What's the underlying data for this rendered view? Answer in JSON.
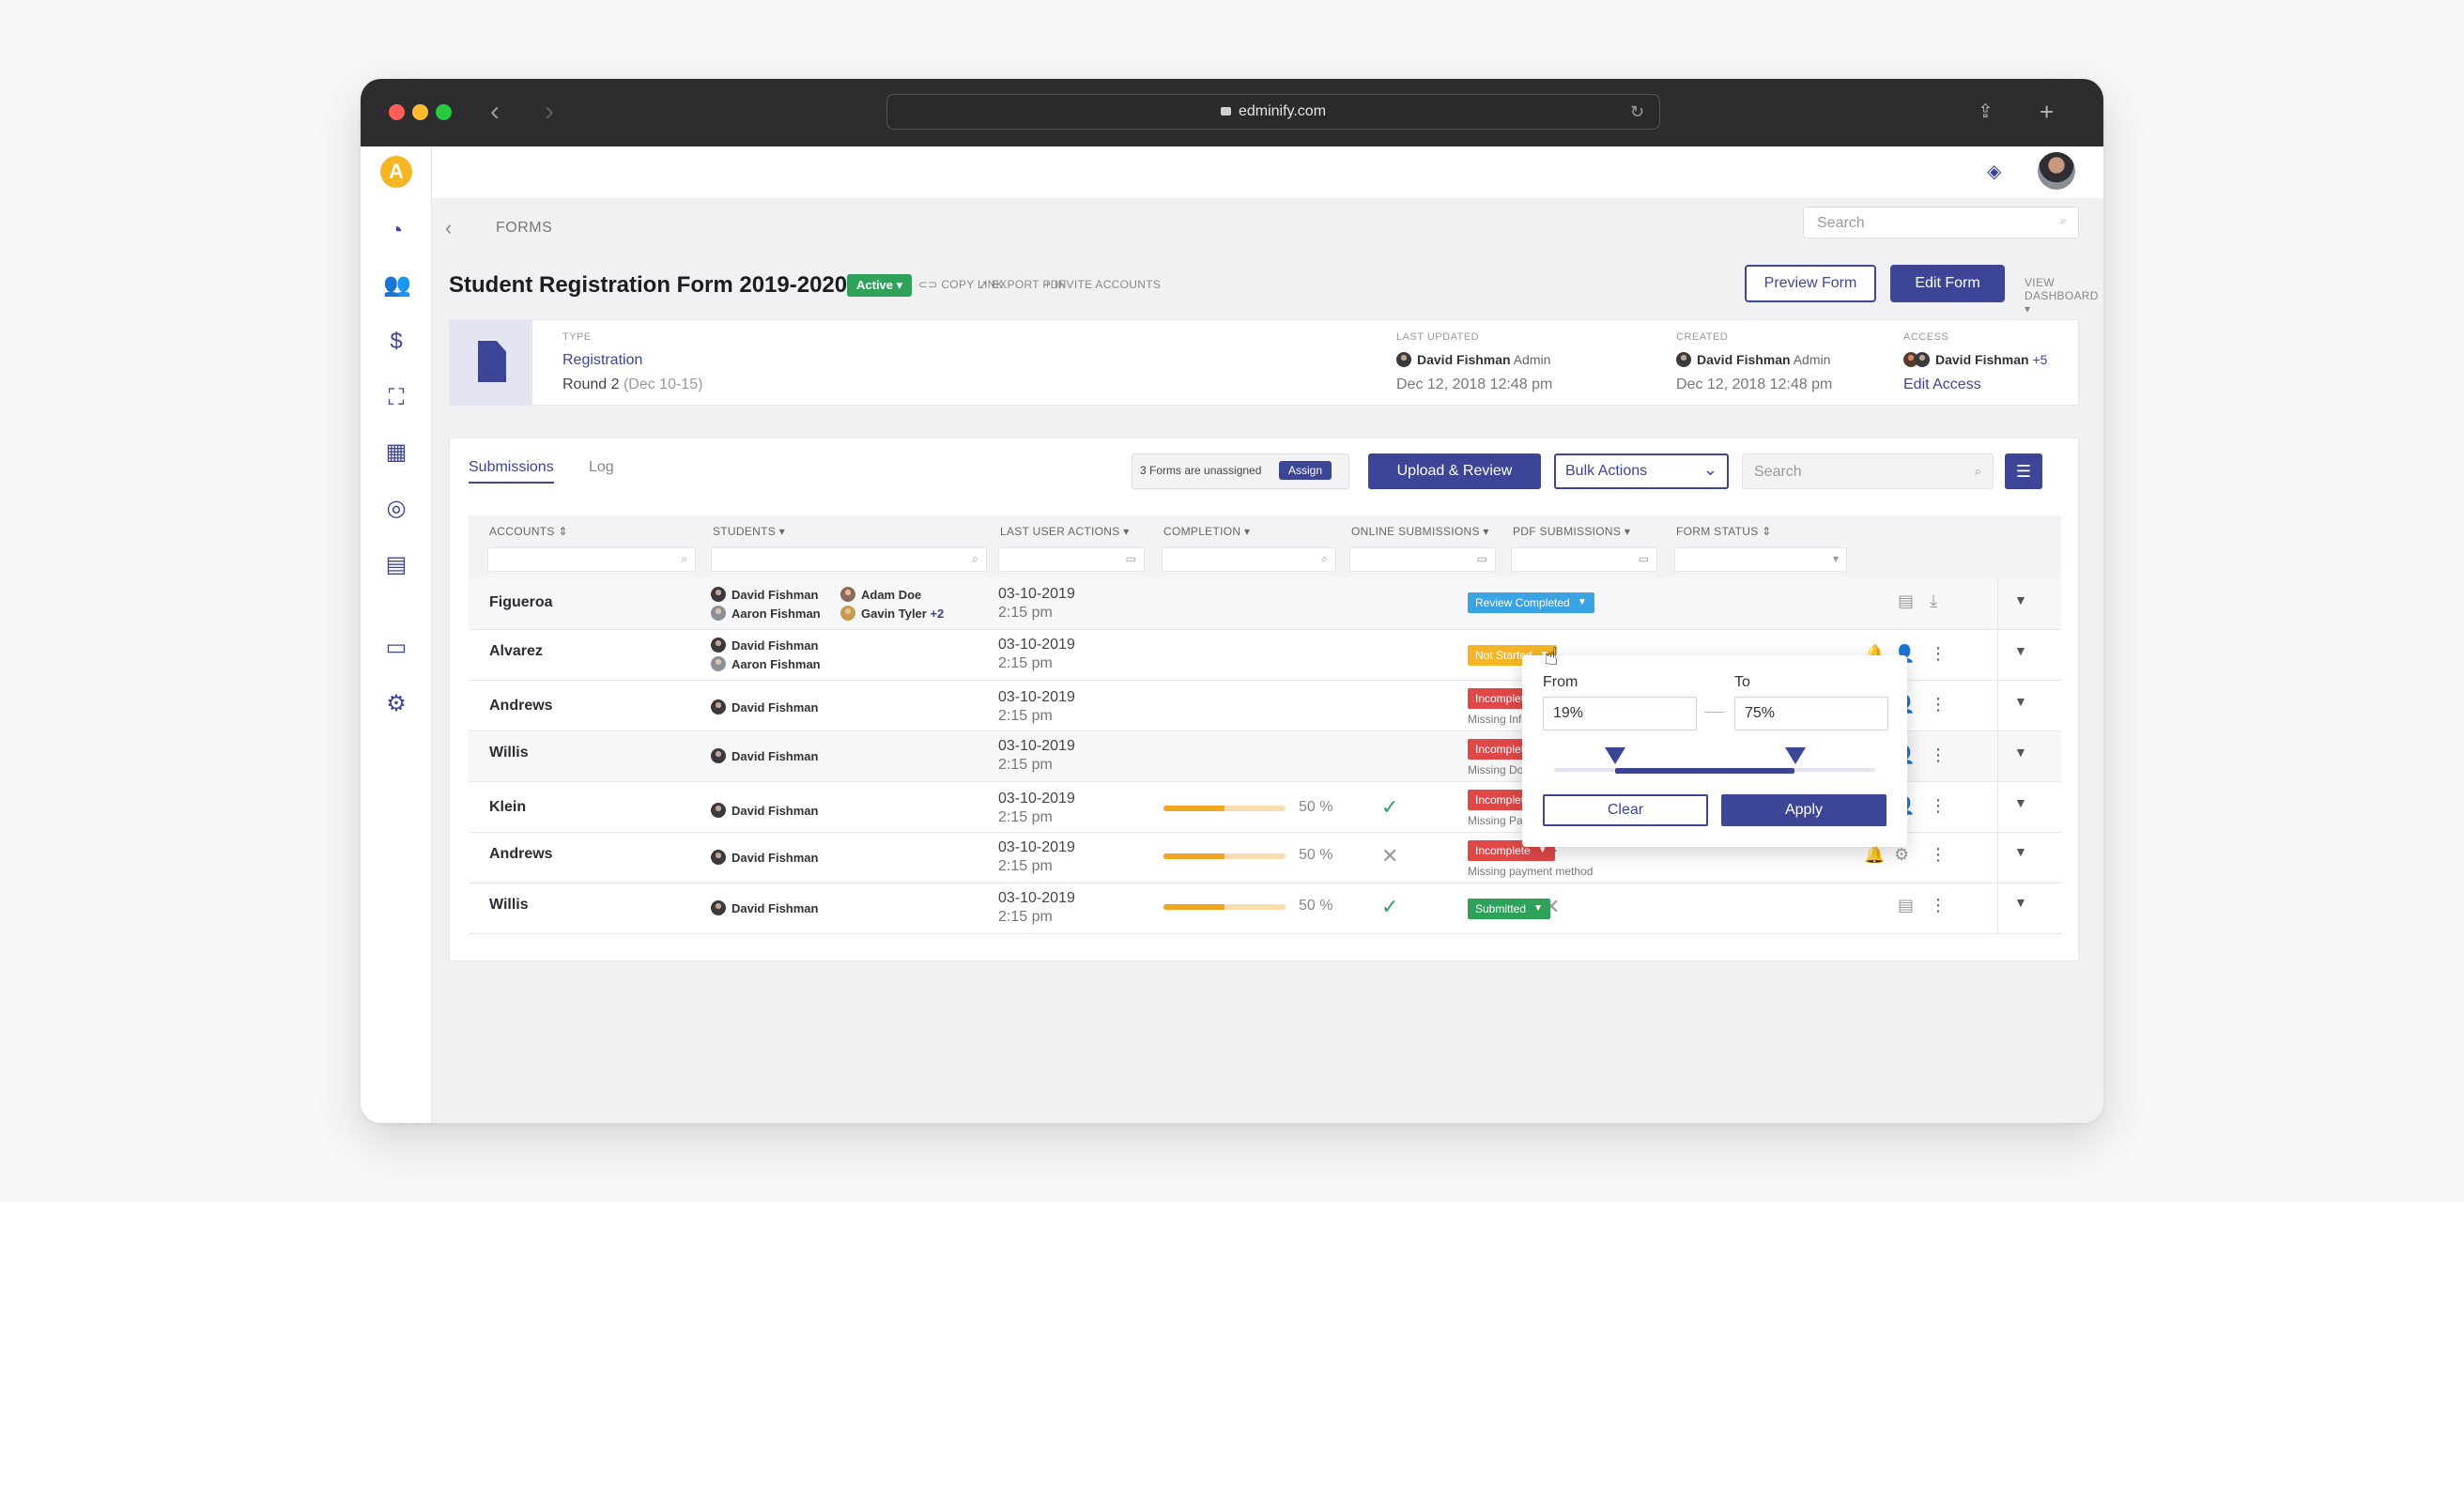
{
  "browser": {
    "url": "edminify.com"
  },
  "colors": {
    "brand": "#3d4596",
    "active": "#2fa15b",
    "review": "#3aa3e3",
    "notStarted": "#f5b524",
    "incomplete": "#e04848",
    "submitted": "#2fa15b"
  },
  "sidebar": {
    "logo": "A",
    "icons": [
      "speedometer-icon",
      "users-icon",
      "dollar-icon",
      "classroom-icon",
      "dashboard-icon",
      "support-icon",
      "forms-icon",
      "chat-icon",
      "gear-icon"
    ]
  },
  "header": {
    "crumb": "FORMS",
    "search_placeholder": "Search"
  },
  "form": {
    "title": "Student Registration Form 2019-2020",
    "status": "Active",
    "links": {
      "copy": "COPY LINK",
      "export": "EXPORT PDF",
      "invite": "INVITE ACCOUNTS"
    },
    "preview": "Preview Form",
    "edit": "Edit Form",
    "view_dashboard": "VIEW DASHBOARD"
  },
  "info": {
    "type_label": "TYPE",
    "type": "Registration",
    "round": "Round 2",
    "round_dates": "(Dec 10-15)",
    "updated_label": "LAST UPDATED",
    "updated_by": "David Fishman",
    "updated_role": "Admin",
    "updated_date": "Dec 12, 2018 12:48 pm",
    "created_label": "CREATED",
    "created_by": "David Fishman",
    "created_role": "Admin",
    "created_date": "Dec 12, 2018 12:48 pm",
    "access_label": "ACCESS",
    "access_user": "David Fishman",
    "access_more": "+5",
    "edit_access": "Edit Access"
  },
  "panel": {
    "tabs": [
      "Submissions",
      "Log"
    ],
    "unassigned": "3 Forms are unassigned",
    "assign": "Assign",
    "upload": "Upload & Review",
    "bulk": "Bulk Actions",
    "search_placeholder": "Search"
  },
  "columns": [
    "ACCOUNTS",
    "STUDENTS",
    "LAST USER ACTIONS",
    "COMPLETION",
    "ONLINE SUBMISSIONS",
    "PDF SUBMISSIONS",
    "FORM STATUS"
  ],
  "rows": [
    {
      "account": "Figueroa",
      "s1": "David Fishman",
      "s2": "Aaron Fishman",
      "s3": "Adam Doe",
      "s4": "Gavin Tyler",
      "more": "+2",
      "date": "03-10-2019",
      "time": "2:15 pm",
      "pdf": "✕",
      "status": "Review Completed",
      "note": ""
    },
    {
      "account": "Alvarez",
      "s1": "David Fishman",
      "s2": "Aaron Fishman",
      "date": "03-10-2019",
      "time": "2:15 pm",
      "pdf": "✓",
      "status": "Not Started",
      "note": ""
    },
    {
      "account": "Andrews",
      "s1": "David Fishman",
      "date": "03-10-2019",
      "time": "2:15 pm",
      "pdf": "✓",
      "status": "Incomplete",
      "note": "Missing Info"
    },
    {
      "account": "Willis",
      "s1": "David Fishman",
      "date": "03-10-2019",
      "time": "2:15 pm",
      "pdf": "✕",
      "status": "Incomplete",
      "note": "Missing Documents"
    },
    {
      "account": "Klein",
      "s1": "David Fishman",
      "date": "03-10-2019",
      "time": "2:15 pm",
      "completion": 0.5,
      "pct": "50 %",
      "online": "✓",
      "pdf": "✓",
      "status": "Incomplete",
      "note": "Missing Payment"
    },
    {
      "account": "Andrews",
      "s1": "David Fishman",
      "date": "03-10-2019",
      "time": "2:15 pm",
      "completion": 0.5,
      "pct": "50 %",
      "online": "✕",
      "pdf": "✓",
      "status": "Incomplete",
      "note": "Missing payment method"
    },
    {
      "account": "Willis",
      "s1": "David Fishman",
      "date": "03-10-2019",
      "time": "2:15 pm",
      "completion": 0.5,
      "pct": "50 %",
      "online": "✓",
      "pdf": "✕",
      "status": "Submitted",
      "note": ""
    }
  ],
  "popover": {
    "from_label": "From",
    "to_label": "To",
    "from": "19%",
    "to": "75%",
    "range": [
      0.19,
      0.75
    ],
    "clear": "Clear",
    "apply": "Apply"
  }
}
